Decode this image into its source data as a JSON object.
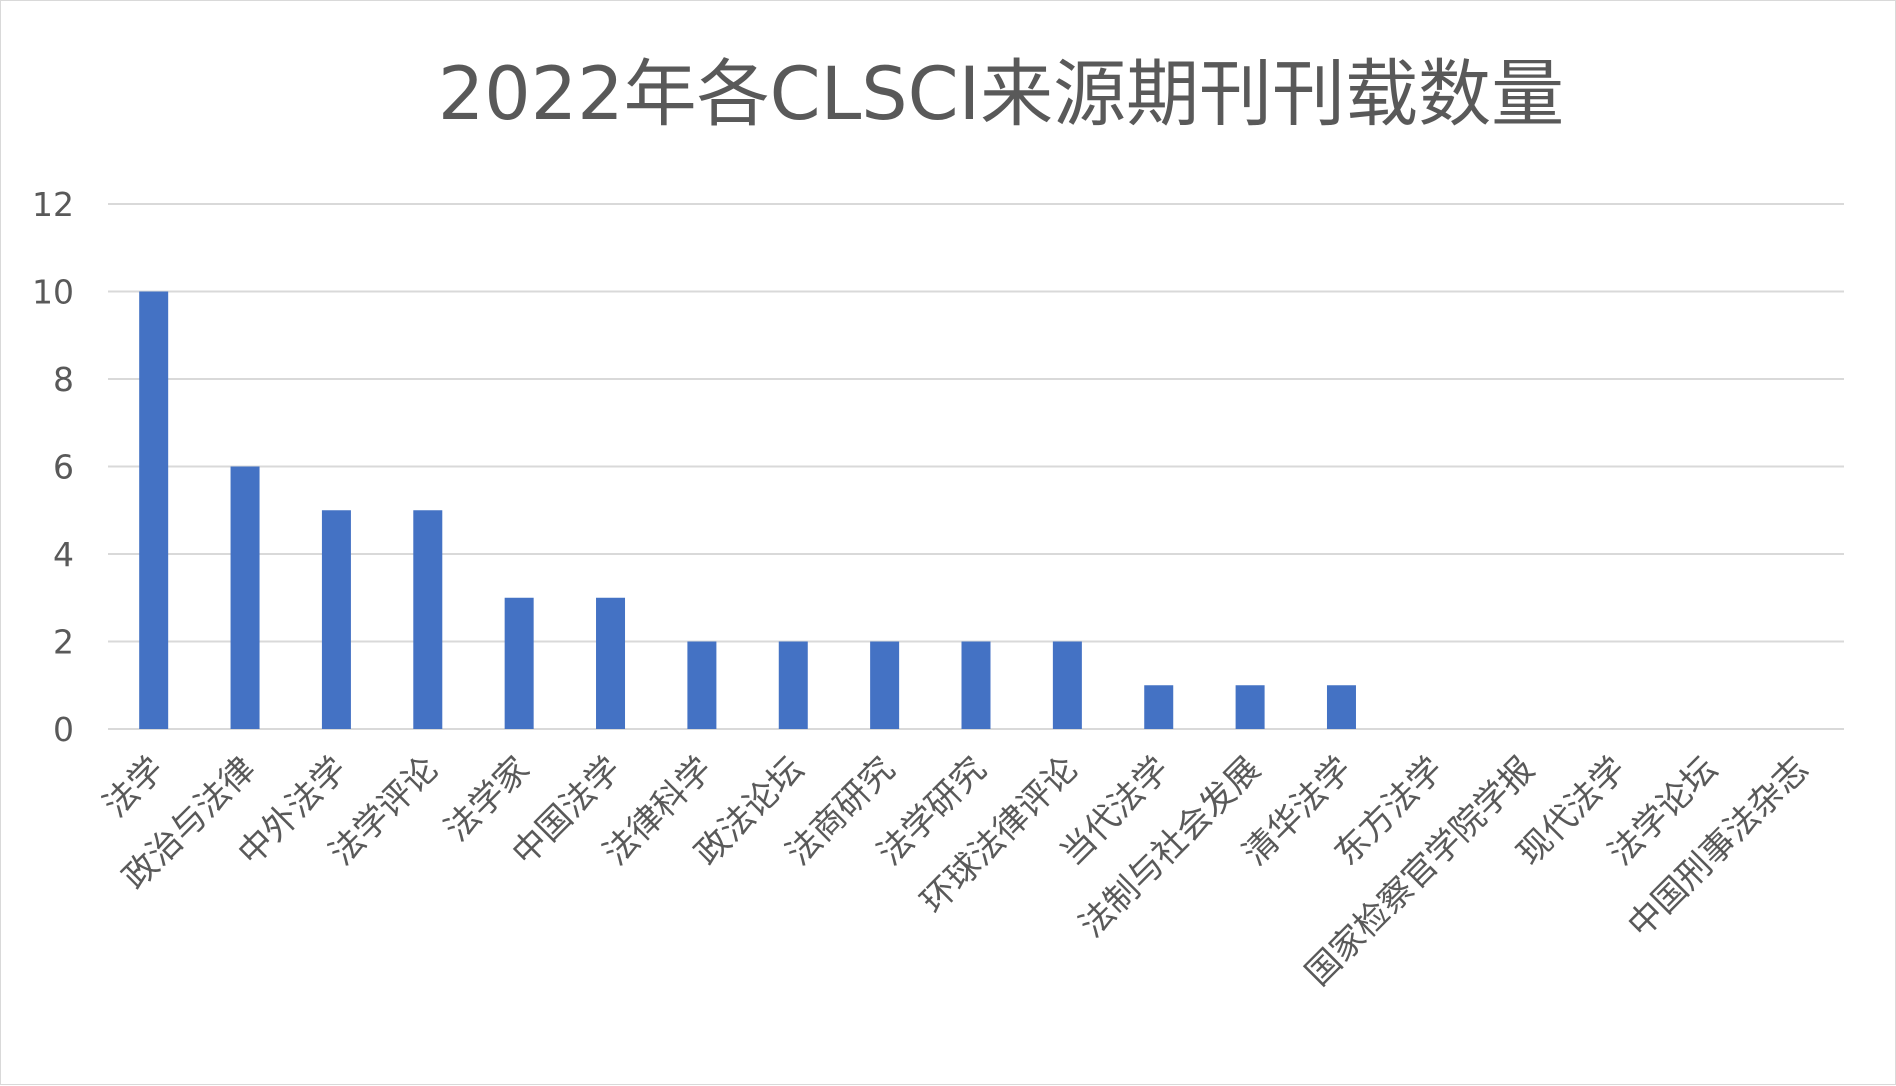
{
  "chart_data": {
    "type": "bar",
    "title": "2022年各CLSCI来源期刊刊载数量",
    "xlabel": "",
    "ylabel": "",
    "ylim": [
      0,
      12
    ],
    "y_ticks": [
      0,
      2,
      4,
      6,
      8,
      10,
      12
    ],
    "grid": true,
    "legend": "none",
    "bar_color": "#4472C4",
    "categories": [
      "法学",
      "政治与法律",
      "中外法学",
      "法学评论",
      "法学家",
      "中国法学",
      "法律科学",
      "政法论坛",
      "法商研究",
      "法学研究",
      "环球法律评论",
      "当代法学",
      "法制与社会发展",
      "清华法学",
      "东方法学",
      "国家检察官学院学报",
      "现代法学",
      "法学论坛",
      "中国刑事法杂志"
    ],
    "values": [
      10,
      6,
      5,
      5,
      3,
      3,
      2,
      2,
      2,
      2,
      2,
      1,
      1,
      1,
      0,
      0,
      0,
      0,
      0
    ]
  }
}
